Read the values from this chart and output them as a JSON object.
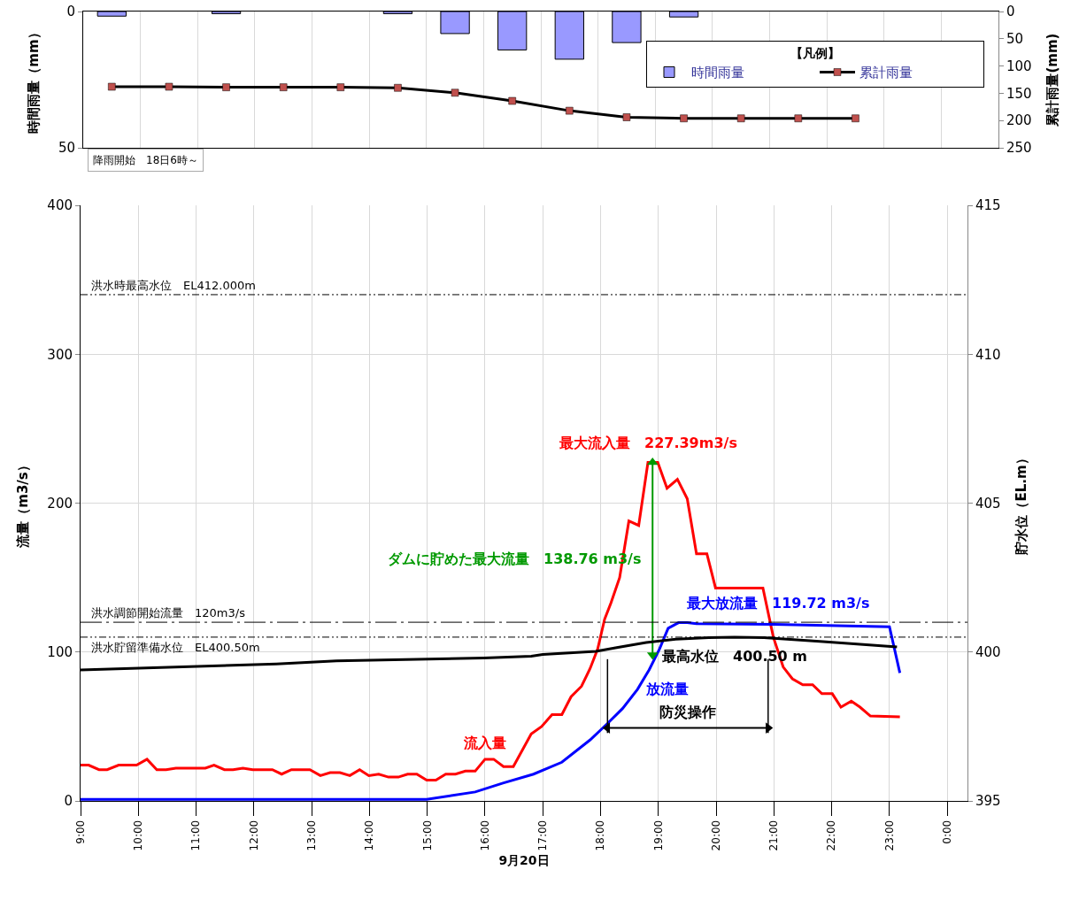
{
  "chart_data": [
    {
      "type": "bar",
      "ylabel": "時間雨量（mm）",
      "y2label": "累計雨量(mm)",
      "legend_title": "【凡例】",
      "legend": "top right",
      "grid": "x",
      "tick_labels": "y",
      "categories": [
        null,
        null,
        null,
        null,
        null,
        null,
        null,
        null,
        null,
        null,
        null,
        null,
        null,
        null,
        null,
        null
      ],
      "ylim": [
        50,
        0
      ],
      "yticks": [
        0,
        50
      ],
      "y2lim": [
        250,
        0
      ],
      "y2ticks": [
        0,
        50,
        100,
        150,
        200,
        250
      ],
      "series": [
        {
          "name": "時間雨量",
          "type": "bar",
          "color": "#9999ff",
          "values": [
            1.7,
            null,
            0.8,
            null,
            null,
            0.8,
            8.1,
            14.1,
            17.5,
            11.4,
            2.0,
            null,
            null,
            null,
            null,
            null
          ]
        },
        {
          "name": "累計雨量",
          "type": "line",
          "axis": "y2",
          "color": "#000000",
          "marker": "square",
          "colors": [
            "#c0504d",
            "#c0504d",
            "#c0504d",
            "#c0504d",
            "#c0504d",
            "#c0504d",
            "#c0504d",
            "#c0504d",
            "#c0504d",
            "#c0504d",
            "#c0504d",
            "#c0504d",
            "#c0504d",
            "#c0504d",
            null,
            null
          ],
          "values": [
            138,
            138,
            139,
            139,
            139,
            140,
            149,
            164,
            182,
            194,
            196,
            196,
            196,
            196,
            null,
            null
          ]
        }
      ],
      "annotations": [
        "降雨開始　18日6時～"
      ]
    },
    {
      "type": "line",
      "xlabel": "9月20日",
      "ylabel": "流量（m3/s）",
      "y2label": "貯水位（EL.m）",
      "grid": true,
      "xlim": [
        9,
        24.35
      ],
      "xticks": [
        {
          "value": 9,
          "label": "9:00"
        },
        {
          "value": 10,
          "label": "10:00"
        },
        {
          "value": 11,
          "label": "11:00"
        },
        {
          "value": 12,
          "label": "12:00"
        },
        {
          "value": 13,
          "label": "13:00"
        },
        {
          "value": 14,
          "label": "14:00"
        },
        {
          "value": 15,
          "label": "15:00"
        },
        {
          "value": 16,
          "label": "16:00"
        },
        {
          "value": 17,
          "label": "17:00"
        },
        {
          "value": 18,
          "label": "18:00"
        },
        {
          "value": 19,
          "label": "19:00"
        },
        {
          "value": 20,
          "label": "20:00"
        },
        {
          "value": 21,
          "label": "21:00"
        },
        {
          "value": 22,
          "label": "22:00"
        },
        {
          "value": 23,
          "label": "23:00"
        },
        {
          "value": 24,
          "label": "0:00"
        }
      ],
      "ylim": [
        0,
        400
      ],
      "yticks": [
        0,
        100,
        200,
        300,
        400
      ],
      "y2lim": [
        395,
        415
      ],
      "y2ticks": [
        395,
        400,
        405,
        410,
        415
      ],
      "series": [
        {
          "color": "#ff0000",
          "x": [
            9.0,
            9.14,
            9.32,
            9.46,
            9.66,
            9.97,
            10.15,
            10.32,
            10.48,
            10.65,
            11.16,
            11.31,
            11.49,
            11.64,
            11.81,
            11.98,
            12.32,
            12.48,
            12.65,
            12.97,
            13.15,
            13.32,
            13.49,
            13.66,
            13.83,
            13.99,
            14.16,
            14.33,
            14.5,
            14.66,
            14.82,
            14.99,
            15.15,
            15.32,
            15.49,
            15.66,
            15.83,
            16.0,
            16.15,
            16.32,
            16.49,
            16.8,
            16.98,
            17.16,
            17.33,
            17.49,
            17.67,
            17.82,
            17.95,
            18.07,
            18.18,
            18.33,
            18.49,
            18.66,
            18.82,
            18.99,
            19.15,
            19.33,
            19.5,
            19.66,
            19.84,
            19.99,
            20.81,
            20.99,
            21.16,
            21.32,
            21.5,
            21.67,
            21.83,
            22.01,
            22.16,
            22.34,
            22.49,
            22.67,
            23.18
          ],
          "name": "流入量",
          "value_labels": [
            null,
            null,
            null,
            null,
            null,
            null,
            null,
            null,
            null,
            null,
            null,
            null,
            null,
            null,
            null,
            null,
            null,
            null,
            null,
            null,
            null,
            null,
            null,
            null,
            null,
            null,
            null,
            null,
            null,
            null,
            null,
            null,
            null,
            null,
            null,
            null,
            null,
            null,
            null,
            null,
            null,
            null,
            null,
            null,
            null,
            null,
            null,
            null,
            null,
            null,
            null,
            null,
            null,
            null,
            "最大流入量　227.39m3/s",
            null,
            null,
            null,
            null,
            null,
            null,
            null,
            null,
            null,
            null,
            null,
            null,
            null,
            null,
            null,
            null,
            null,
            null,
            null,
            null
          ],
          "values": [
            24,
            24,
            21,
            21,
            24,
            24,
            28,
            21,
            21,
            22,
            22,
            24,
            21,
            21,
            22,
            21,
            21,
            18,
            21,
            21,
            17,
            19,
            19,
            17,
            21,
            17,
            18,
            16,
            16,
            18,
            18,
            14,
            14,
            18,
            18,
            20,
            20,
            28,
            28,
            23,
            23,
            45,
            50,
            58,
            58,
            70,
            77,
            89,
            102,
            122,
            133,
            150,
            188,
            185,
            227.39,
            227.39,
            210,
            216,
            203,
            166,
            166,
            143,
            143,
            110,
            90,
            82,
            78,
            78,
            72,
            72,
            63,
            67,
            63,
            57,
            56.5
          ]
        },
        {
          "color": "#0000ff",
          "x": [
            9.0,
            14.99,
            15.83,
            16.31,
            16.84,
            17.33,
            17.82,
            18.12,
            18.38,
            18.64,
            18.84,
            19.02,
            19.17,
            19.35,
            19.5,
            19.66,
            21.0,
            23.0,
            23.18
          ],
          "name": "放流量",
          "value_labels": [
            null,
            null,
            null,
            null,
            null,
            null,
            null,
            null,
            null,
            null,
            null,
            null,
            null,
            "最大放流量　119.72 m3/s",
            null,
            null,
            null,
            null,
            null
          ],
          "values": [
            1,
            1,
            6,
            12,
            18,
            26,
            41,
            52,
            62,
            75,
            88,
            102,
            116,
            119.72,
            119.72,
            119,
            118.5,
            117,
            86
          ]
        },
        {
          "color": "#000000",
          "axis": "y2",
          "x": [
            9.0,
            12.39,
            13.43,
            15.98,
            16.8,
            17.0,
            17.92,
            18.28,
            18.79,
            19.3,
            19.87,
            20.32,
            20.83,
            21.85,
            23.13
          ],
          "value_labels": [
            null,
            null,
            null,
            null,
            null,
            null,
            null,
            null,
            null,
            null,
            null,
            "最高水位　400.50 m",
            null,
            null,
            null
          ],
          "values": [
            399.4,
            399.6,
            399.7,
            399.8,
            399.86,
            399.92,
            400.02,
            400.15,
            400.32,
            400.43,
            400.48,
            400.5,
            400.48,
            400.35,
            400.17
          ]
        },
        {
          "name": "ダムに貯めた最大流量　138.76 m3/s",
          "color": "#009900",
          "marker": "triangle",
          "x": [
            18.9,
            18.9
          ],
          "values": [
            227.39,
            98
          ]
        },
        {
          "name": "防災操作",
          "color": "#000000",
          "marker": "triangle",
          "x": [
            18.12,
            20.9
          ],
          "values": [
            49,
            49
          ]
        }
      ],
      "ref_lines": [
        {
          "axis": "y2",
          "value": 412,
          "label": "洪水時最高水位　EL412.000m",
          "color": "#000000",
          "line_style": "dotted"
        },
        {
          "axis": "y",
          "value": 120,
          "label": "洪水調節開始流量　120m3/s",
          "color": "#000000",
          "line_style": "dashed"
        },
        {
          "axis": "y2",
          "value": 400.5,
          "label": "洪水貯留準備水位　EL400.50m",
          "color": "#000000",
          "line_style": "dotted"
        },
        {
          "axis": "x",
          "value": 18.12,
          "color": "#000000",
          "line_style": "solid"
        },
        {
          "axis": "x",
          "value": 20.9,
          "color": "#000000",
          "line_style": "solid"
        }
      ]
    }
  ]
}
